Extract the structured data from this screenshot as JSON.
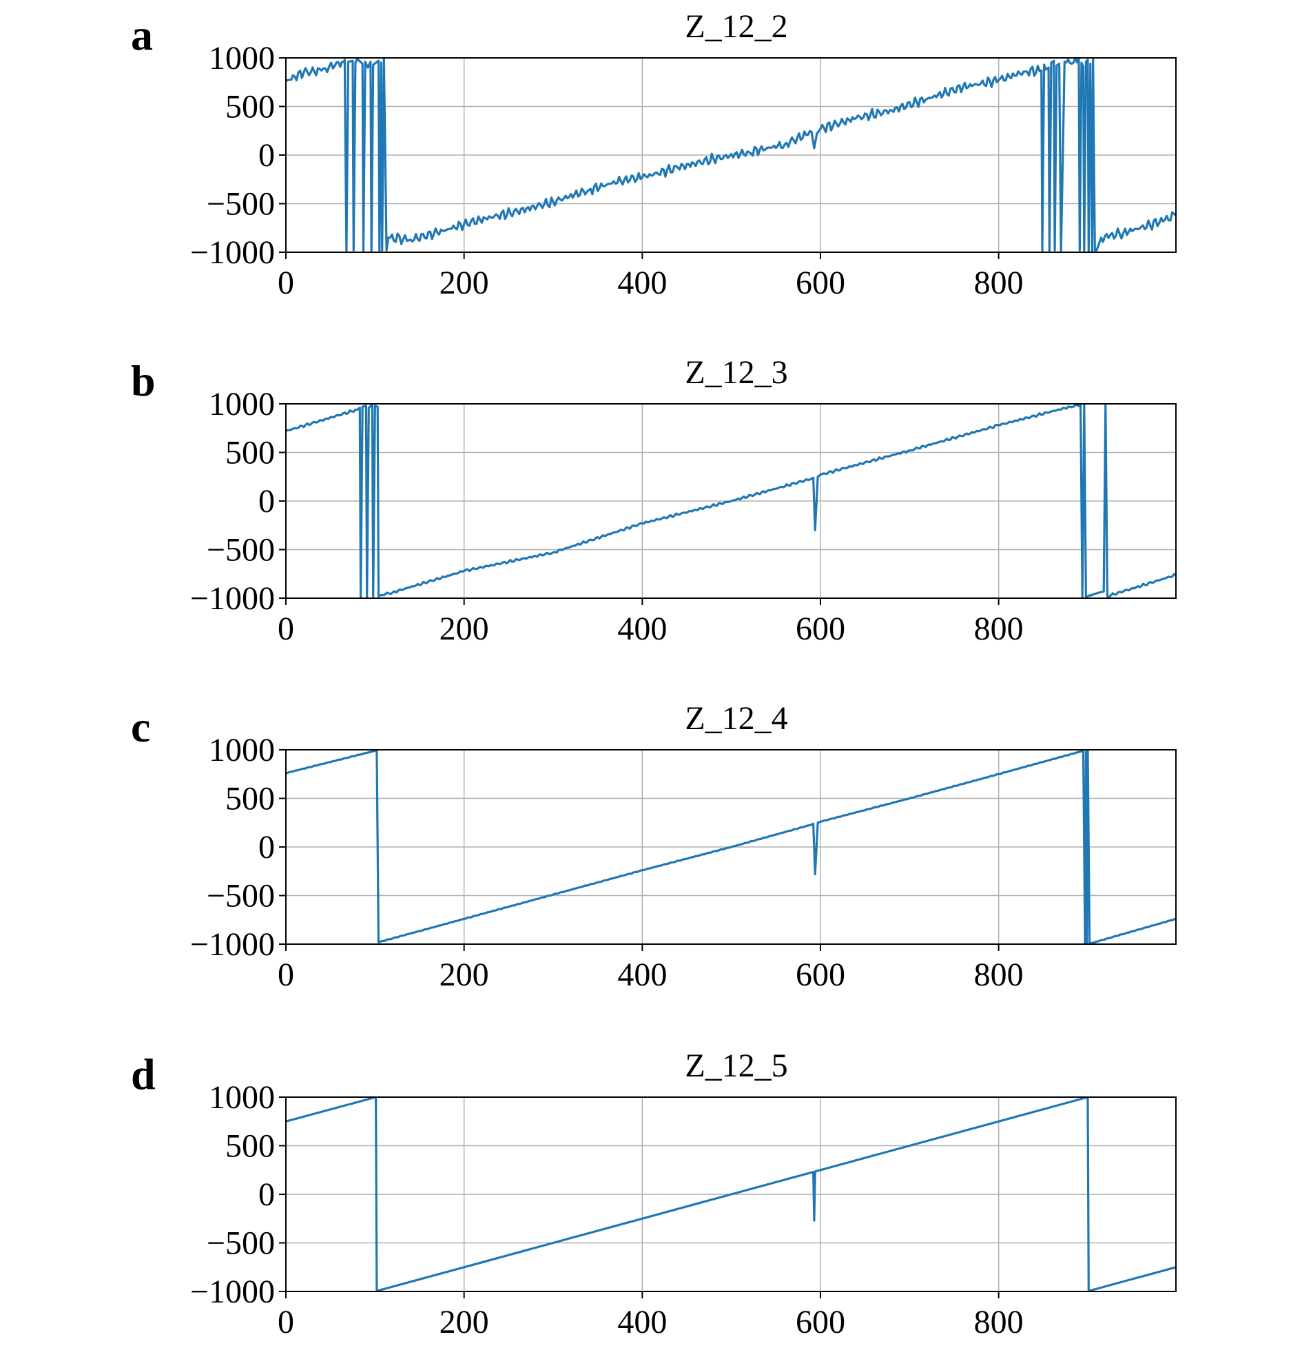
{
  "figure": {
    "colors": {
      "line": "#1f77b4",
      "grid": "#b0b0b0",
      "frame": "#000000"
    }
  },
  "chart_data": [
    {
      "type": "line",
      "panel_label": "a",
      "title": "Z_12_2",
      "xlim": [
        0,
        999
      ],
      "ylim": [
        -1000,
        1000
      ],
      "grid": true,
      "x_ticks": [
        0,
        200,
        400,
        600,
        800
      ],
      "x_tick_labels": [
        "0",
        "200",
        "400",
        "600",
        "800"
      ],
      "y_ticks": [
        1000,
        500,
        0,
        -500,
        -1000
      ],
      "y_tick_labels": [
        "1000",
        "500",
        "0",
        "−500",
        "−1000"
      ],
      "noise_amplitude": 60,
      "series": [
        {
          "x": [
            0,
            20,
            40,
            55,
            65,
            66,
            68,
            70,
            75,
            76,
            78,
            80,
            86,
            87,
            89,
            92,
            95,
            96,
            98,
            104,
            105,
            107,
            108,
            110,
            113,
            115,
            140,
            170,
            200,
            230,
            260,
            300,
            340,
            380,
            400,
            440,
            480,
            520,
            560,
            590,
            593,
            596,
            600,
            640,
            680,
            720,
            760,
            800,
            830,
            848,
            849,
            851,
            853,
            856,
            857,
            859,
            862,
            863,
            865,
            868,
            870,
            874,
            882,
            890,
            891,
            893,
            895,
            896,
            898,
            900,
            901,
            903,
            905,
            906,
            908,
            910,
            915,
            940,
            970,
            999
          ],
          "y": [
            760,
            850,
            870,
            920,
            960,
            980,
            -990,
            960,
            970,
            -980,
            950,
            990,
            940,
            -990,
            960,
            900,
            960,
            -990,
            930,
            970,
            -990,
            950,
            -980,
            990,
            -980,
            -850,
            -870,
            -800,
            -710,
            -640,
            -580,
            -480,
            -360,
            -250,
            -230,
            -130,
            -40,
            30,
            110,
            240,
            70,
            220,
            270,
            380,
            460,
            580,
            700,
            770,
            860,
            870,
            -990,
            930,
            880,
            900,
            -990,
            950,
            970,
            -980,
            920,
            940,
            -990,
            960,
            940,
            990,
            -980,
            950,
            910,
            -990,
            960,
            980,
            -990,
            940,
            -990,
            990,
            -980,
            -980,
            -850,
            -800,
            -720,
            -620
          ]
        }
      ]
    },
    {
      "type": "line",
      "panel_label": "b",
      "title": "Z_12_3",
      "xlim": [
        0,
        999
      ],
      "ylim": [
        -1000,
        1000
      ],
      "grid": true,
      "x_ticks": [
        0,
        200,
        400,
        600,
        800
      ],
      "x_tick_labels": [
        "0",
        "200",
        "400",
        "600",
        "800"
      ],
      "y_ticks": [
        1000,
        500,
        0,
        -500,
        -1000
      ],
      "y_tick_labels": [
        "1000",
        "500",
        "0",
        "−500",
        "−1000"
      ],
      "noise_amplitude": 15,
      "series": [
        {
          "x": [
            0,
            40,
            80,
            83,
            84,
            86,
            90,
            91,
            93,
            97,
            98,
            100,
            103,
            104,
            106,
            120,
            200,
            300,
            400,
            500,
            590,
            592,
            594,
            597,
            600,
            700,
            800,
            880,
            892,
            894,
            896,
            898,
            900,
            910,
            918,
            920,
            922,
            940,
            999
          ],
          "y": [
            720,
            830,
            940,
            960,
            -990,
            970,
            980,
            -990,
            960,
            990,
            -990,
            980,
            970,
            -980,
            -970,
            -940,
            -720,
            -530,
            -230,
            0,
            230,
            240,
            -300,
            250,
            270,
            520,
            780,
            970,
            990,
            -990,
            990,
            -990,
            -980,
            -950,
            -930,
            990,
            -980,
            -930,
            -760
          ]
        }
      ]
    },
    {
      "type": "line",
      "panel_label": "c",
      "title": "Z_12_4",
      "xlim": [
        0,
        999
      ],
      "ylim": [
        -1000,
        1000
      ],
      "grid": true,
      "x_ticks": [
        0,
        200,
        400,
        600,
        800
      ],
      "x_tick_labels": [
        "0",
        "200",
        "400",
        "600",
        "800"
      ],
      "y_ticks": [
        1000,
        500,
        0,
        -500,
        -1000
      ],
      "y_tick_labels": [
        "1000",
        "500",
        "0",
        "−500",
        "−1000"
      ],
      "noise_amplitude": 4,
      "series": [
        {
          "x": [
            0,
            100,
            102,
            104,
            200,
            300,
            400,
            500,
            590,
            592,
            594,
            597,
            600,
            700,
            800,
            895,
            897,
            898,
            899,
            900,
            902,
            904,
            999
          ],
          "y": [
            760,
            990,
            1000,
            -980,
            -740,
            -490,
            -240,
            0,
            230,
            240,
            -280,
            250,
            260,
            500,
            750,
            990,
            -990,
            980,
            -990,
            1000,
            -990,
            -990,
            -740
          ]
        }
      ]
    },
    {
      "type": "line",
      "panel_label": "d",
      "title": "Z_12_5",
      "xlim": [
        0,
        999
      ],
      "ylim": [
        -1000,
        1000
      ],
      "grid": true,
      "x_ticks": [
        0,
        200,
        400,
        600,
        800
      ],
      "x_tick_labels": [
        "0",
        "200",
        "400",
        "600",
        "800"
      ],
      "y_ticks": [
        1000,
        500,
        0,
        -500,
        -1000
      ],
      "y_tick_labels": [
        "1000",
        "500",
        "0",
        "−500",
        "−1000"
      ],
      "noise_amplitude": 0,
      "series": [
        {
          "x": [
            0,
            101,
            102,
            200,
            300,
            400,
            500,
            590,
            592,
            593,
            594,
            596,
            600,
            700,
            800,
            900,
            901,
            999
          ],
          "y": [
            750,
            1000,
            -995,
            -750,
            -500,
            -250,
            0,
            225,
            230,
            -270,
            235,
            240,
            250,
            500,
            750,
            1000,
            -995,
            -750
          ]
        }
      ]
    }
  ]
}
